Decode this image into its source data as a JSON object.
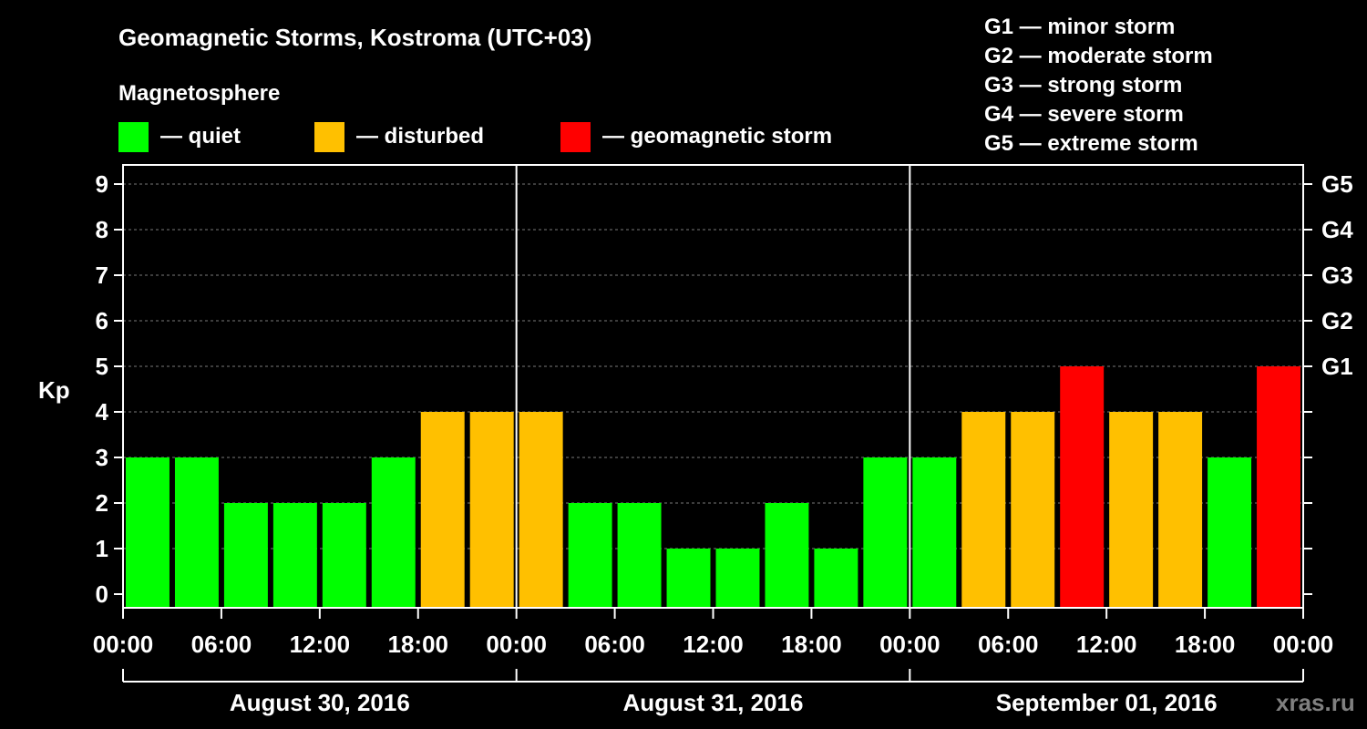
{
  "chart_data": {
    "type": "bar",
    "title": "Geomagnetic Storms, Kostroma (UTC+03)",
    "ylabel": "Kp",
    "ylim": [
      0,
      9
    ],
    "legend": {
      "heading": "Magnetosphere",
      "position": "top-left",
      "items": [
        {
          "label": "— quiet",
          "color": "#00ff00"
        },
        {
          "label": "— disturbed",
          "color": "#ffc000"
        },
        {
          "label": "— geomagnetic storm",
          "color": "#ff0000"
        }
      ]
    },
    "storm_scale": {
      "position": "top-right",
      "items": [
        "G1 — minor storm",
        "G2 — moderate storm",
        "G3 — strong storm",
        "G4 — severe storm",
        "G5 — extreme storm"
      ]
    },
    "y_ticks": [
      "0",
      "1",
      "2",
      "3",
      "4",
      "5",
      "6",
      "7",
      "8",
      "9"
    ],
    "right_axis": [
      {
        "label": "G1",
        "kp": 5
      },
      {
        "label": "G2",
        "kp": 6
      },
      {
        "label": "G3",
        "kp": 7
      },
      {
        "label": "G4",
        "kp": 8
      },
      {
        "label": "G5",
        "kp": 9
      }
    ],
    "x_ticks": [
      "00:00",
      "06:00",
      "12:00",
      "18:00",
      "00:00",
      "06:00",
      "12:00",
      "18:00",
      "00:00",
      "06:00",
      "12:00",
      "18:00",
      "00:00"
    ],
    "days": [
      "August 30, 2016",
      "August 31, 2016",
      "September 01, 2016"
    ],
    "intervals_per_day": 8,
    "values": [
      3,
      3,
      2,
      2,
      2,
      3,
      4,
      4,
      4,
      2,
      2,
      1,
      1,
      2,
      1,
      3,
      3,
      4,
      4,
      5,
      4,
      4,
      3,
      5
    ],
    "colors": [
      "#00ff00",
      "#00ff00",
      "#00ff00",
      "#00ff00",
      "#00ff00",
      "#00ff00",
      "#ffc000",
      "#ffc000",
      "#ffc000",
      "#00ff00",
      "#00ff00",
      "#00ff00",
      "#00ff00",
      "#00ff00",
      "#00ff00",
      "#00ff00",
      "#00ff00",
      "#ffc000",
      "#ffc000",
      "#ff0000",
      "#ffc000",
      "#ffc000",
      "#00ff00",
      "#ff0000"
    ],
    "grid": true
  },
  "watermark": "xras.ru"
}
